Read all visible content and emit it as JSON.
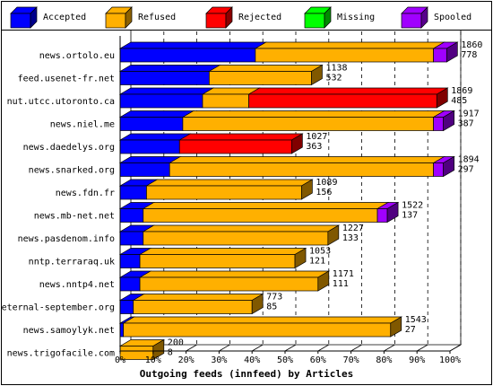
{
  "chart_data": {
    "type": "bar",
    "orientation": "horizontal",
    "stacked": true,
    "three_d": true,
    "title": "Outgoing feeds (innfeed) by Articles",
    "xlabel": "",
    "ylabel": "",
    "xlim": [
      0,
      100
    ],
    "x_unit": "%",
    "x_ticks": [
      "0%",
      "10%",
      "20%",
      "30%",
      "40%",
      "50%",
      "60%",
      "70%",
      "80%",
      "90%",
      "100%"
    ],
    "grid": "vertical dashed",
    "legend_position": "top",
    "legend": [
      {
        "name": "Accepted",
        "color": "#0000ff"
      },
      {
        "name": "Refused",
        "color": "#ffb000"
      },
      {
        "name": "Rejected",
        "color": "#ff0000"
      },
      {
        "name": "Missing",
        "color": "#00ff00"
      },
      {
        "name": "Spooled",
        "color": "#a000ff"
      }
    ],
    "categories": [
      "news.ortolo.eu",
      "feed.usenet-fr.net",
      "nut.utcc.utoronto.ca",
      "news.niel.me",
      "news.daedelys.org",
      "news.snarked.org",
      "news.fdn.fr",
      "news.mb-net.net",
      "news.pasdenom.info",
      "nntp.terraraq.uk",
      "news.nntp4.net",
      "eternal-september.org",
      "news.samoylyk.net",
      "news.trigofacile.com"
    ],
    "series": [
      {
        "name": "Accepted",
        "values": [
          41,
          27,
          25,
          19,
          18,
          15,
          8,
          7,
          7,
          6,
          6,
          4,
          1,
          0
        ]
      },
      {
        "name": "Refused",
        "values": [
          54,
          31,
          14,
          76,
          0,
          80,
          47,
          71,
          56,
          47,
          54,
          36,
          81,
          10
        ]
      },
      {
        "name": "Rejected",
        "values": [
          0,
          0,
          57,
          0,
          34,
          0,
          0,
          0,
          0,
          0,
          0,
          0,
          0,
          0
        ]
      },
      {
        "name": "Missing",
        "values": [
          0,
          0,
          0,
          0,
          0,
          0,
          0,
          0,
          0,
          0,
          0,
          0,
          0,
          0
        ]
      },
      {
        "name": "Spooled",
        "values": [
          4,
          0,
          0,
          3,
          0,
          3,
          0,
          3,
          0,
          0,
          0,
          0,
          0,
          0
        ]
      }
    ],
    "end_labels": [
      [
        "1860",
        "778"
      ],
      [
        "1138",
        "532"
      ],
      [
        "1869",
        "485"
      ],
      [
        "1917",
        "387"
      ],
      [
        "1027",
        "363"
      ],
      [
        "1894",
        "297"
      ],
      [
        "1089",
        "156"
      ],
      [
        "1522",
        "137"
      ],
      [
        "1227",
        "133"
      ],
      [
        "1053",
        "121"
      ],
      [
        "1171",
        "111"
      ],
      [
        "773",
        "85"
      ],
      [
        "1543",
        "27"
      ],
      [
        "200",
        "8"
      ]
    ]
  }
}
